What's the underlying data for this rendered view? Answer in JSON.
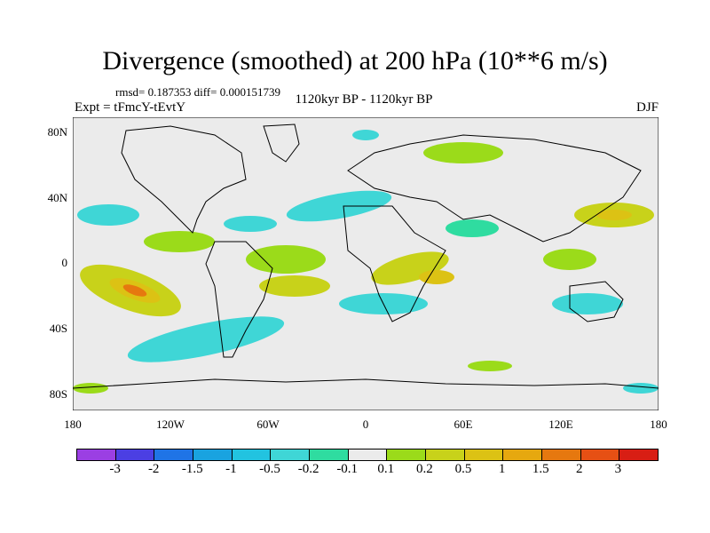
{
  "title": "Divergence (smoothed) at 200 hPa (10**6 m/s)",
  "stats": "rmsd= 0.187353 diff= 0.000151739",
  "expt": "Expt = tFmcY-tEvtY",
  "period": "1120kyr BP - 1120kyr BP",
  "season": "DJF",
  "y_ticks": [
    "80N",
    "40N",
    "0",
    "40S",
    "80S"
  ],
  "x_ticks": [
    "180",
    "120W",
    "60W",
    "0",
    "60E",
    "120E",
    "180"
  ],
  "colorbar": {
    "colors": [
      "#9b3fe3",
      "#4b3fe3",
      "#1f74e6",
      "#19a3e0",
      "#22c3e0",
      "#3fd6d6",
      "#2fdca0",
      "#ebebeb",
      "#9bdb1a",
      "#c8d21a",
      "#dcc214",
      "#e6a80f",
      "#e6780f",
      "#e65014",
      "#d81e14"
    ],
    "labels": [
      "-3",
      "-2",
      "-1.5",
      "-1",
      "-0.5",
      "-0.2",
      "-0.1",
      "0.1",
      "0.2",
      "0.5",
      "1",
      "1.5",
      "2",
      "3"
    ]
  }
}
